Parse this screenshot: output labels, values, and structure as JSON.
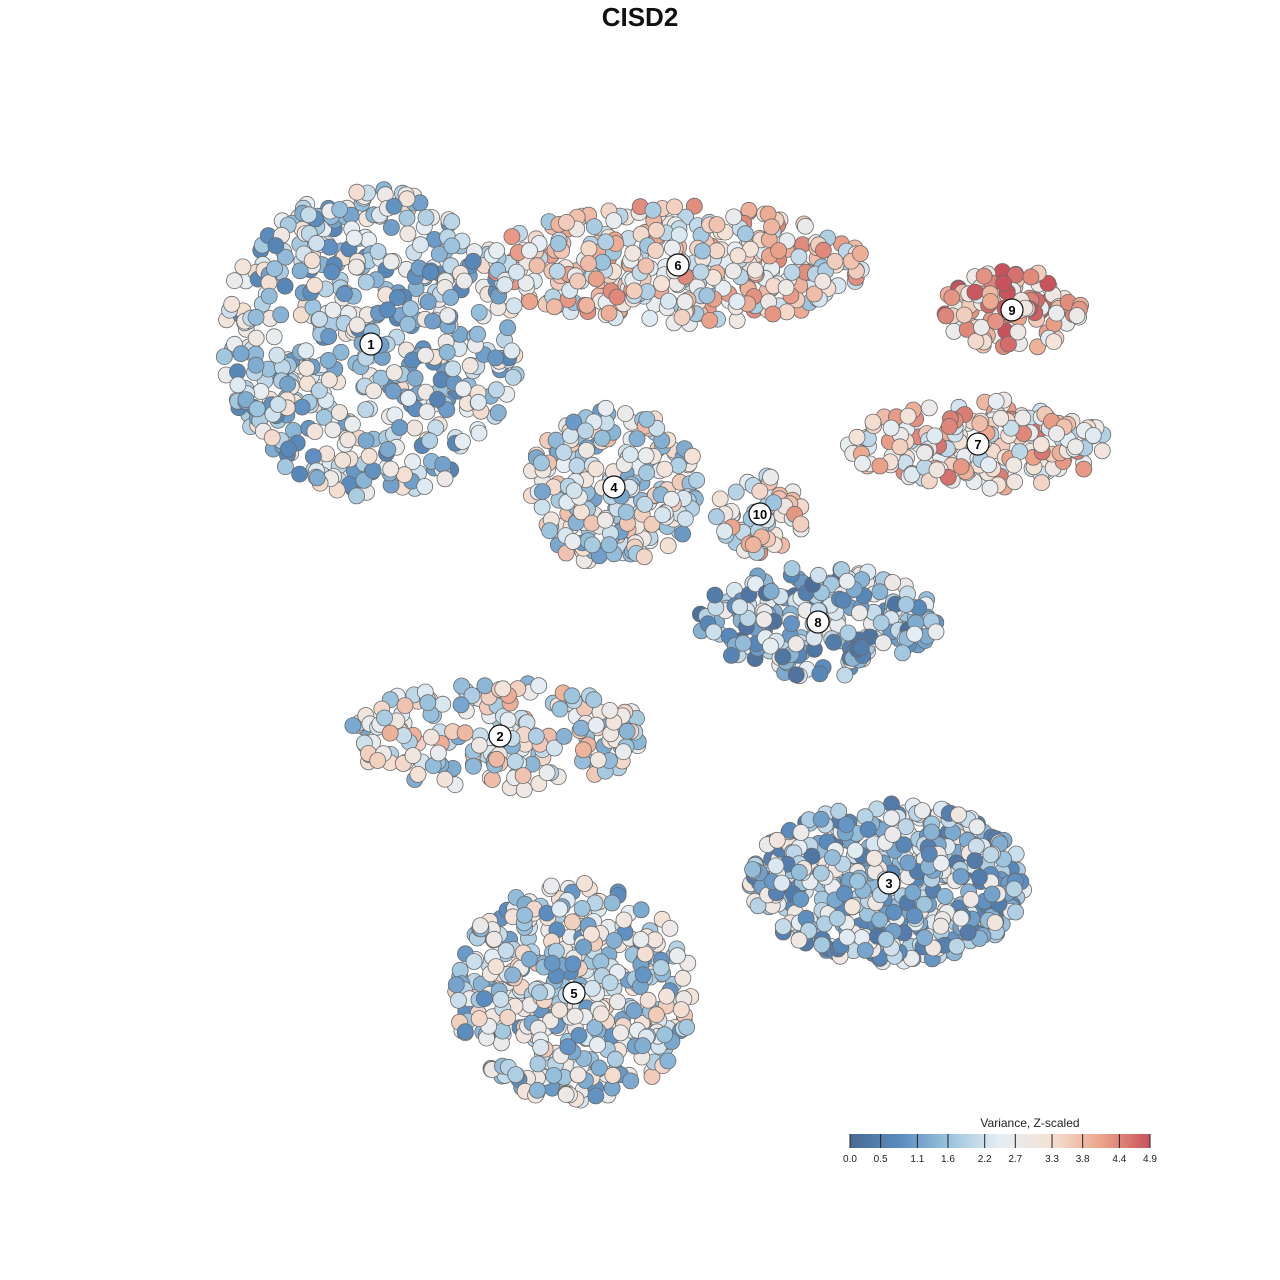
{
  "chart_data": {
    "type": "scatter",
    "title": "CISD2",
    "xlabel": "",
    "ylabel": "",
    "grid": false,
    "legend_placement": "bottom-right",
    "color_scale": {
      "title": "Variance, Z-scaled",
      "ticks": [
        0.0,
        0.5,
        1.1,
        1.6,
        2.2,
        2.7,
        3.3,
        3.8,
        4.4,
        4.9
      ],
      "tick_labels": [
        "0.0",
        "0.5",
        "1.1",
        "1.6",
        "2.2",
        "2.7",
        "3.3",
        "3.8",
        "4.4",
        "4.9"
      ],
      "range": [
        0.0,
        4.9
      ],
      "colors": [
        "#4a6a94",
        "#5a8cbf",
        "#9cc4de",
        "#e6eef4",
        "#f4e2d6",
        "#eca58c",
        "#c8535c"
      ]
    },
    "clusters": [
      {
        "label": "1",
        "value": 2.0
      },
      {
        "label": "2",
        "value": 2.6
      },
      {
        "label": "3",
        "value": 1.7
      },
      {
        "label": "4",
        "value": 2.4
      },
      {
        "label": "5",
        "value": 2.2
      },
      {
        "label": "6",
        "value": 3.0
      },
      {
        "label": "7",
        "value": 3.2
      },
      {
        "label": "8",
        "value": 1.5
      },
      {
        "label": "9",
        "value": 3.7
      },
      {
        "label": "10",
        "value": 2.9
      }
    ]
  }
}
